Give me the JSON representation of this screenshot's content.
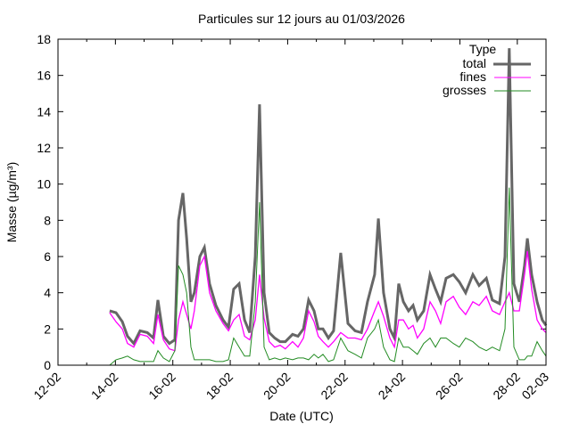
{
  "chart_data": {
    "type": "line",
    "title": "Particules sur 12 jours au 01/03/2026",
    "xlabel": "Date (UTC)",
    "ylabel": "Masse (µg/m³)",
    "xlim_days": [
      0,
      17
    ],
    "ylim": [
      0,
      18
    ],
    "yticks": [
      0,
      2,
      4,
      6,
      8,
      10,
      12,
      14,
      16,
      18
    ],
    "xtick_labels": [
      "12-02",
      "14-02",
      "16-02",
      "18-02",
      "20-02",
      "22-02",
      "24-02",
      "26-02",
      "28-02",
      "02-03"
    ],
    "xtick_days": [
      0,
      2,
      4,
      6,
      8,
      10,
      12,
      14,
      16,
      17
    ],
    "legend_title": "Type",
    "legend_position": "top-right",
    "x_days": [
      1.8,
      2.02,
      2.24,
      2.42,
      2.64,
      2.86,
      3.11,
      3.33,
      3.48,
      3.67,
      3.88,
      4.07,
      4.2,
      4.35,
      4.48,
      4.63,
      4.75,
      4.94,
      5.1,
      5.28,
      5.5,
      5.75,
      5.94,
      6.12,
      6.31,
      6.5,
      6.68,
      6.87,
      7.02,
      7.18,
      7.36,
      7.55,
      7.74,
      7.92,
      8.17,
      8.36,
      8.55,
      8.73,
      8.92,
      9.07,
      9.23,
      9.42,
      9.6,
      9.85,
      10.1,
      10.35,
      10.57,
      10.78,
      11.03,
      11.16,
      11.34,
      11.56,
      11.72,
      11.87,
      12.03,
      12.21,
      12.37,
      12.52,
      12.74,
      12.96,
      13.15,
      13.33,
      13.52,
      13.77,
      13.98,
      14.2,
      14.45,
      14.67,
      14.92,
      15.13,
      15.38,
      15.57,
      15.72,
      15.88,
      16.07,
      16.25,
      16.35,
      16.5,
      16.69,
      16.87,
      17.0
    ],
    "series": [
      {
        "name": "total",
        "color": "#666666",
        "values": [
          3.0,
          2.9,
          2.4,
          1.6,
          1.2,
          1.9,
          1.8,
          1.5,
          3.6,
          1.6,
          1.2,
          1.4,
          8.0,
          9.5,
          7.0,
          3.5,
          4.0,
          6.0,
          6.5,
          4.5,
          3.3,
          2.5,
          2.1,
          4.2,
          4.5,
          2.5,
          1.8,
          6.0,
          14.4,
          4.0,
          1.8,
          1.5,
          1.3,
          1.3,
          1.7,
          1.6,
          2.0,
          3.6,
          3.0,
          2.0,
          2.0,
          1.5,
          1.9,
          6.2,
          2.3,
          1.9,
          1.8,
          3.5,
          5.0,
          8.1,
          4.0,
          2.0,
          1.5,
          4.5,
          3.5,
          3.0,
          3.3,
          2.5,
          3.0,
          5.0,
          4.2,
          3.5,
          4.8,
          5.0,
          4.6,
          4.0,
          5.0,
          4.4,
          4.8,
          3.6,
          3.4,
          6.0,
          17.5,
          4.5,
          3.5,
          5.5,
          7.0,
          5.0,
          3.5,
          2.5,
          2.2
        ]
      },
      {
        "name": "fines",
        "color": "#ff00ff",
        "values": [
          2.9,
          2.4,
          2.0,
          1.2,
          1.0,
          1.7,
          1.6,
          1.2,
          2.8,
          1.4,
          0.9,
          0.8,
          2.5,
          3.5,
          2.8,
          2.0,
          3.0,
          5.5,
          6.0,
          4.0,
          3.0,
          2.3,
          1.9,
          2.5,
          2.8,
          1.6,
          1.4,
          2.5,
          5.0,
          2.6,
          1.3,
          1.0,
          1.1,
          0.9,
          1.3,
          1.0,
          1.5,
          3.0,
          2.4,
          1.6,
          1.3,
          1.0,
          1.3,
          1.8,
          1.5,
          1.5,
          1.4,
          2.0,
          3.0,
          3.5,
          2.7,
          1.5,
          1.0,
          2.5,
          2.5,
          2.0,
          2.2,
          1.5,
          2.0,
          3.5,
          3.0,
          2.3,
          3.5,
          3.8,
          3.2,
          2.8,
          3.5,
          3.3,
          3.8,
          3.0,
          2.8,
          3.5,
          4.0,
          3.0,
          3.0,
          5.0,
          6.3,
          4.2,
          2.5,
          2.0,
          1.8
        ]
      },
      {
        "name": "grosses",
        "color": "#228b22",
        "values": [
          0.0,
          0.3,
          0.4,
          0.5,
          0.3,
          0.2,
          0.2,
          0.2,
          0.8,
          0.4,
          0.2,
          0.8,
          5.5,
          5.0,
          4.0,
          1.0,
          0.3,
          0.3,
          0.3,
          0.3,
          0.2,
          0.2,
          0.3,
          1.5,
          1.0,
          0.5,
          0.5,
          3.5,
          9.0,
          1.0,
          0.3,
          0.4,
          0.3,
          0.4,
          0.3,
          0.4,
          0.4,
          0.3,
          0.6,
          0.4,
          0.6,
          0.2,
          0.3,
          1.5,
          0.8,
          0.6,
          0.4,
          1.5,
          2.0,
          2.5,
          1.0,
          0.3,
          0.2,
          1.5,
          1.0,
          1.0,
          0.8,
          0.6,
          1.2,
          1.5,
          1.0,
          1.5,
          1.5,
          1.2,
          1.0,
          1.5,
          1.3,
          1.0,
          0.8,
          1.0,
          0.8,
          2.0,
          9.8,
          1.0,
          0.3,
          0.3,
          0.5,
          0.5,
          1.3,
          0.8,
          0.5
        ]
      }
    ]
  }
}
